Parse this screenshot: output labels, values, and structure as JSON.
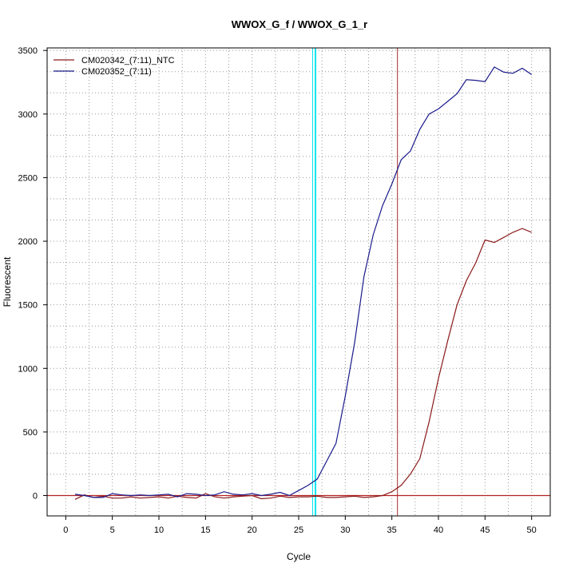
{
  "chart_data": {
    "type": "line",
    "title": "WWOX_G_f / WWOX_G_1_r",
    "xlabel": "Cycle",
    "ylabel": "Fluorescent",
    "xlim": [
      -2,
      52
    ],
    "ylim": [
      -160,
      3520
    ],
    "xticks": [
      0,
      5,
      10,
      15,
      20,
      25,
      30,
      35,
      40,
      45,
      50
    ],
    "yticks": [
      0,
      500,
      1000,
      1500,
      2000,
      2500,
      3000,
      3500
    ],
    "x_grid_lines": [
      2.5,
      7.5,
      12.5,
      17.5,
      22.5,
      27.5,
      32.5,
      37.5,
      42.5,
      47.5
    ],
    "y_grid_lines": [
      167,
      333,
      667,
      833,
      1167,
      1333,
      1667,
      1833,
      2167,
      2333,
      2667,
      2833,
      3167,
      3333
    ],
    "grid": true,
    "legend_position": "top-left",
    "vertical_lines": [
      {
        "x": 26.8,
        "color": "#00e5ee",
        "width": 2
      },
      {
        "x": 26.5,
        "color": "#00e5ee",
        "width": 1
      },
      {
        "x": 35.6,
        "color": "#a52a2a",
        "width": 1
      }
    ],
    "horizontal_lines": [
      {
        "y": 0,
        "color": "#b22222",
        "width": 1.2
      }
    ],
    "x": [
      1,
      2,
      3,
      4,
      5,
      6,
      7,
      8,
      9,
      10,
      11,
      12,
      13,
      14,
      15,
      16,
      17,
      18,
      19,
      20,
      21,
      22,
      23,
      24,
      25,
      26,
      27,
      28,
      29,
      30,
      31,
      32,
      33,
      34,
      35,
      36,
      37,
      38,
      39,
      40,
      41,
      42,
      43,
      44,
      45,
      46,
      47,
      48,
      49,
      50
    ],
    "series": [
      {
        "name": "CM020342_(7:11)_NTC",
        "color": "#8b1a1a",
        "values": [
          -30,
          5,
          -15,
          -5,
          -20,
          -20,
          -10,
          -20,
          -15,
          -10,
          -20,
          -5,
          -15,
          -20,
          15,
          -10,
          -20,
          -10,
          -5,
          0,
          -25,
          -20,
          -5,
          -15,
          -10,
          -10,
          -5,
          -15,
          -15,
          -10,
          -5,
          -15,
          -10,
          0,
          30,
          80,
          170,
          290,
          580,
          920,
          1220,
          1500,
          1690,
          1830,
          2010,
          1990,
          2030,
          2070,
          2100,
          2070
        ]
      },
      {
        "name": "CM020352_(7:11)",
        "color": "#1a1a8b",
        "values": [
          10,
          0,
          -15,
          -15,
          15,
          5,
          0,
          5,
          0,
          5,
          10,
          -10,
          15,
          10,
          0,
          5,
          30,
          10,
          5,
          15,
          0,
          10,
          25,
          0,
          40,
          80,
          130,
          270,
          410,
          780,
          1200,
          1720,
          2050,
          2280,
          2450,
          2640,
          2710,
          2880,
          3000,
          3040,
          3100,
          3160,
          3270,
          3265,
          3255,
          3370,
          3330,
          3320,
          3360,
          3310
        ]
      }
    ]
  }
}
